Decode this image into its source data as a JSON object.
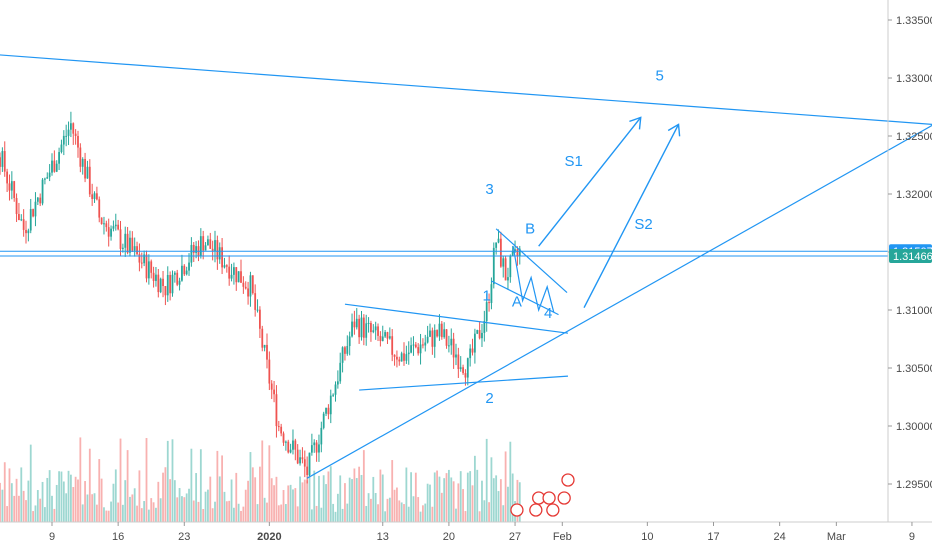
{
  "chart_data": {
    "type": "candlestick",
    "instrument_note": "",
    "y_axis": {
      "min": 1.2915,
      "max": 1.3375,
      "ticks": [
        "1.33500",
        "1.33000",
        "1.32500",
        "1.32000",
        "1.31500",
        "1.31000",
        "1.30500",
        "1.30000",
        "1.29500"
      ]
    },
    "x_axis": {
      "ticks": [
        {
          "label": "9",
          "day": 9
        },
        {
          "label": "16",
          "day": 16
        },
        {
          "label": "23",
          "day": 23
        },
        {
          "label": "2020",
          "day": 32,
          "bold": true
        },
        {
          "label": "13",
          "day": 44
        },
        {
          "label": "20",
          "day": 51
        },
        {
          "label": "27",
          "day": 58
        },
        {
          "label": "Feb",
          "day": 63
        },
        {
          "label": "10",
          "day": 72
        },
        {
          "label": "17",
          "day": 79
        },
        {
          "label": "24",
          "day": 86
        },
        {
          "label": "Mar",
          "day": 92
        },
        {
          "label": "9",
          "day": 100
        }
      ]
    },
    "price_labels": [
      {
        "value": 1.31507,
        "text": "1.31507",
        "color": "#2196f3"
      },
      {
        "value": 1.31466,
        "text": "1.31466",
        "color": "#26a69a"
      }
    ],
    "key_points": [
      {
        "day": 0,
        "price": 1.3322
      },
      {
        "day": 6,
        "price": 1.317
      },
      {
        "day": 11,
        "price": 1.326
      },
      {
        "day": 14,
        "price": 1.318
      },
      {
        "day": 21,
        "price": 1.312
      },
      {
        "day": 25,
        "price": 1.316
      },
      {
        "day": 30,
        "price": 1.312
      },
      {
        "day": 33,
        "price": 1.3
      },
      {
        "day": 36,
        "price": 1.296
      },
      {
        "day": 41,
        "price": 1.309
      },
      {
        "day": 46,
        "price": 1.306
      },
      {
        "day": 50,
        "price": 1.308
      },
      {
        "day": 53,
        "price": 1.305
      },
      {
        "day": 55,
        "price": 1.31
      },
      {
        "day": 56,
        "price": 1.316
      },
      {
        "day": 57,
        "price": 1.313
      },
      {
        "day": 58.5,
        "price": 1.315
      }
    ],
    "volume_note": "volume bars along bottom",
    "wave_labels": [
      {
        "text": "1",
        "day": 55,
        "price": 1.3108
      },
      {
        "text": "2",
        "day": 55.3,
        "price": 1.302
      },
      {
        "text": "3",
        "day": 55.3,
        "price": 1.32
      },
      {
        "text": "A",
        "day": 58.2,
        "price": 1.3103
      },
      {
        "text": "B",
        "day": 59.6,
        "price": 1.3166
      },
      {
        "text": "4",
        "day": 61.5,
        "price": 1.3093
      },
      {
        "text": "5",
        "day": 73.3,
        "price": 1.3298
      },
      {
        "text": "S1",
        "day": 64.2,
        "price": 1.3224
      },
      {
        "text": "S2",
        "day": 71.6,
        "price": 1.317
      }
    ],
    "trendlines": [
      {
        "name": "upper-resistance",
        "x1": 0,
        "y1": 1.3322,
        "x2": 105.5,
        "y2": 1.3258
      },
      {
        "name": "lower-support",
        "x1": 36,
        "y1": 1.2955,
        "x2": 104.5,
        "y2": 1.327
      },
      {
        "name": "triangle-top",
        "x1": 40,
        "y1": 1.3105,
        "x2": 63.6,
        "y2": 1.308
      },
      {
        "name": "triangle-bottom",
        "x1": 41.5,
        "y1": 1.3031,
        "x2": 63.6,
        "y2": 1.3043
      },
      {
        "name": "flag-top",
        "x1": 56,
        "y1": 1.317,
        "x2": 63.5,
        "y2": 1.3115
      },
      {
        "name": "flag-bottom",
        "x1": 55.5,
        "y1": 1.3125,
        "x2": 62.6,
        "y2": 1.3096
      }
    ],
    "projections": [
      {
        "name": "S1",
        "x1": 60.5,
        "y1": 1.3155,
        "x2": 71.3,
        "y2": 1.3266
      },
      {
        "name": "S2",
        "x1": 65.3,
        "y1": 1.3102,
        "x2": 75.3,
        "y2": 1.326
      }
    ],
    "horizontal_lines": [
      1.31507,
      1.31466
    ]
  }
}
